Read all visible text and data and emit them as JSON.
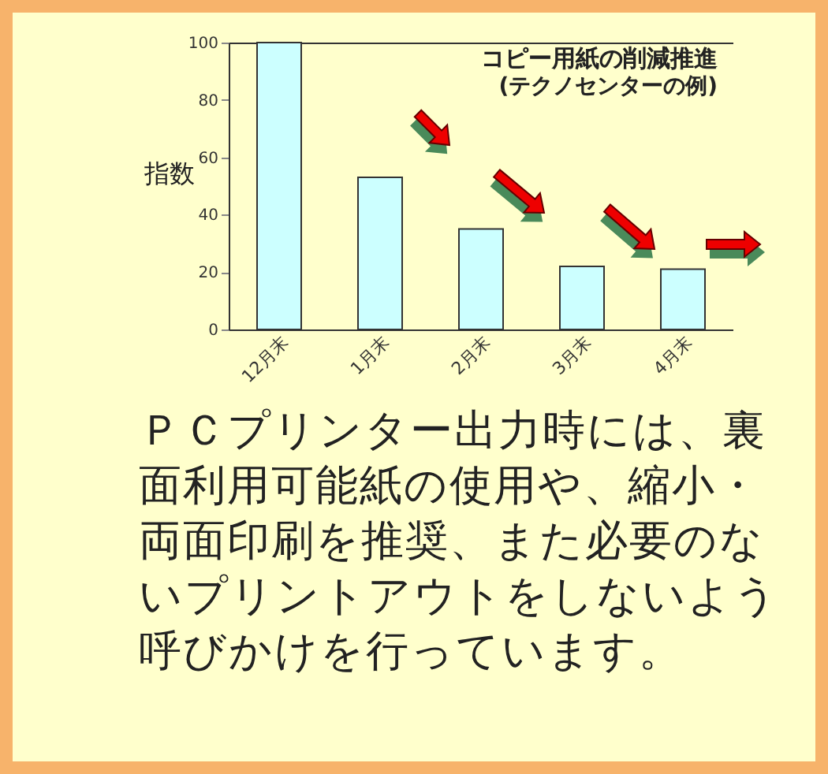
{
  "chart_data": {
    "type": "bar",
    "title": "コピー用紙の削減推進",
    "subtitle": "(テクノセンターの例)",
    "ylabel": "指数",
    "categories": [
      "12月末",
      "1月末",
      "2月末",
      "3月末",
      "4月末"
    ],
    "values": [
      100,
      53,
      35,
      22,
      21
    ],
    "color": "#ccffff",
    "ylim": [
      0,
      100
    ],
    "yticks": [
      0,
      20,
      40,
      60,
      80,
      100
    ],
    "grid": false,
    "annotations": [
      "ＰＣプリンター出力時には、裏面利用可能紙の使用や、縮小・両面印刷を推奨、また必要のないプリントアウトをしないよう呼びかけを行っています。"
    ]
  }
}
